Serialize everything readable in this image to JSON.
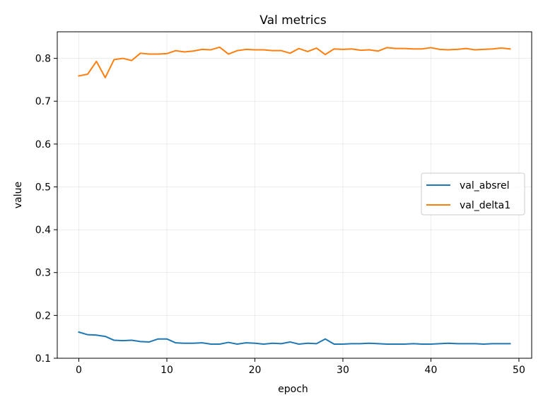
{
  "chart_data": {
    "type": "line",
    "title": "Val metrics",
    "xlabel": "epoch",
    "ylabel": "value",
    "xlim": [
      -2.45,
      51.45
    ],
    "ylim": [
      0.1,
      0.862
    ],
    "xticks": [
      0,
      10,
      20,
      30,
      40,
      50
    ],
    "yticks": [
      0.1,
      0.2,
      0.3,
      0.4,
      0.5,
      0.6,
      0.7,
      0.8
    ],
    "xtick_labels": [
      "0",
      "10",
      "20",
      "30",
      "40",
      "50"
    ],
    "ytick_labels": [
      "0.1",
      "0.2",
      "0.3",
      "0.4",
      "0.5",
      "0.6",
      "0.7",
      "0.8"
    ],
    "grid": true,
    "legend_position": "center-right",
    "x": [
      0,
      1,
      2,
      3,
      4,
      5,
      6,
      7,
      8,
      9,
      10,
      11,
      12,
      13,
      14,
      15,
      16,
      17,
      18,
      19,
      20,
      21,
      22,
      23,
      24,
      25,
      26,
      27,
      28,
      29,
      30,
      31,
      32,
      33,
      34,
      35,
      36,
      37,
      38,
      39,
      40,
      41,
      42,
      43,
      44,
      45,
      46,
      47,
      48,
      49
    ],
    "series": [
      {
        "name": "val_absrel",
        "color": "#1f77b4",
        "values": [
          0.161,
          0.155,
          0.154,
          0.151,
          0.142,
          0.141,
          0.142,
          0.139,
          0.138,
          0.145,
          0.145,
          0.136,
          0.135,
          0.135,
          0.136,
          0.133,
          0.133,
          0.137,
          0.133,
          0.136,
          0.135,
          0.133,
          0.135,
          0.134,
          0.138,
          0.133,
          0.135,
          0.134,
          0.145,
          0.133,
          0.133,
          0.134,
          0.134,
          0.135,
          0.134,
          0.133,
          0.133,
          0.133,
          0.134,
          0.133,
          0.133,
          0.134,
          0.135,
          0.134,
          0.134,
          0.134,
          0.133,
          0.134,
          0.134,
          0.134
        ]
      },
      {
        "name": "val_delta1",
        "color": "#ff7f0e",
        "values": [
          0.759,
          0.763,
          0.793,
          0.755,
          0.797,
          0.8,
          0.795,
          0.812,
          0.81,
          0.81,
          0.811,
          0.818,
          0.815,
          0.817,
          0.821,
          0.82,
          0.826,
          0.81,
          0.818,
          0.821,
          0.82,
          0.82,
          0.818,
          0.818,
          0.812,
          0.823,
          0.816,
          0.824,
          0.809,
          0.822,
          0.821,
          0.822,
          0.819,
          0.82,
          0.817,
          0.825,
          0.823,
          0.823,
          0.822,
          0.822,
          0.825,
          0.821,
          0.82,
          0.821,
          0.823,
          0.82,
          0.821,
          0.822,
          0.824,
          0.822
        ]
      }
    ]
  }
}
